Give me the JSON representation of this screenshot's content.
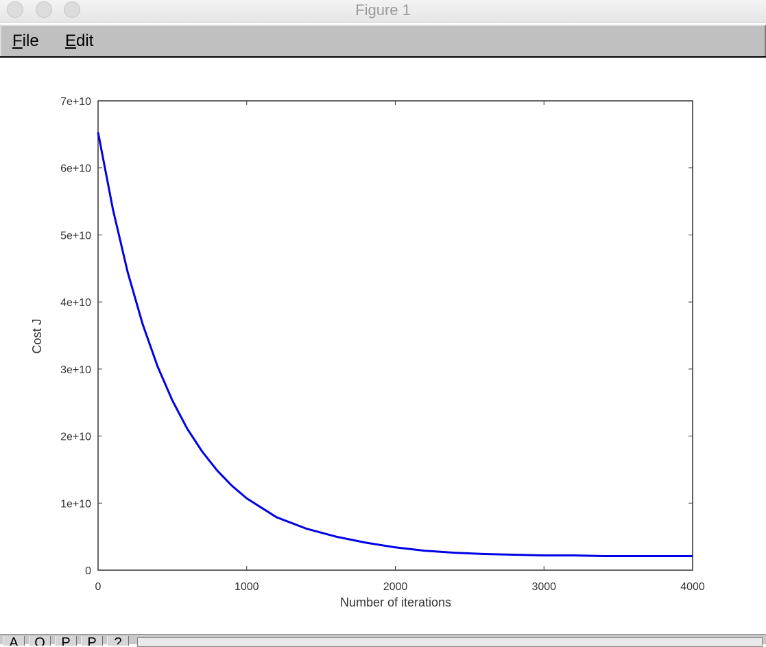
{
  "window": {
    "title": "Figure 1"
  },
  "menu": {
    "file": "File",
    "edit": "Edit"
  },
  "toolbar": {
    "buttons": [
      "A",
      "O",
      "P",
      "P",
      "?"
    ]
  },
  "chart_data": {
    "type": "line",
    "title": "",
    "xlabel": "Number of iterations",
    "ylabel": "Cost J",
    "xlim": [
      0,
      4000
    ],
    "ylim": [
      0,
      70000000000
    ],
    "x_ticks": [
      0,
      1000,
      2000,
      3000,
      4000
    ],
    "x_tick_labels": [
      "0",
      "1000",
      "2000",
      "3000",
      "4000"
    ],
    "y_ticks": [
      0,
      10000000000,
      20000000000,
      30000000000,
      40000000000,
      50000000000,
      60000000000,
      70000000000
    ],
    "y_tick_labels": [
      "0",
      "1e+10",
      "2e+10",
      "3e+10",
      "4e+10",
      "5e+10",
      "6e+10",
      "7e+10"
    ],
    "grid": false,
    "series": [
      {
        "color": "#0000e6",
        "x": [
          0,
          100,
          200,
          300,
          400,
          500,
          600,
          700,
          800,
          900,
          1000,
          1200,
          1400,
          1600,
          1800,
          2000,
          2200,
          2400,
          2600,
          2800,
          3000,
          3200,
          3400,
          3600,
          3800,
          4000
        ],
        "y": [
          65300000000,
          53800000000,
          44400000000,
          36700000000,
          30400000000,
          25300000000,
          21100000000,
          17700000000,
          14900000000,
          12600000000,
          10700000000,
          7900000000,
          6200000000,
          5000000000,
          4100000000,
          3400000000,
          2900000000,
          2600000000,
          2400000000,
          2300000000,
          2200000000,
          2200000000,
          2100000000,
          2100000000,
          2100000000,
          2100000000
        ]
      }
    ]
  }
}
